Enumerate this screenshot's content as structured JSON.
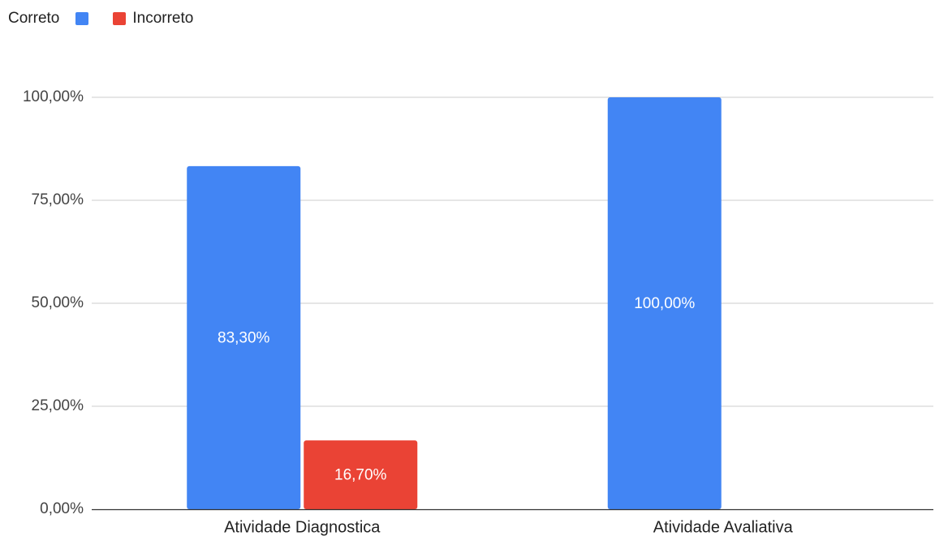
{
  "chart_data": {
    "type": "bar",
    "categories": [
      "Atividade Diagnostica",
      "Atividade Avaliativa"
    ],
    "series": [
      {
        "name": "Correto",
        "color": "#4285f4",
        "values": [
          83.3,
          100.0
        ],
        "labels": [
          "83,30%",
          "100,00%"
        ]
      },
      {
        "name": "Incorreto",
        "color": "#ea4335",
        "values": [
          16.7,
          null
        ],
        "labels": [
          "16,70%",
          null
        ]
      }
    ],
    "ylim": [
      0,
      100
    ],
    "yticks": [
      0,
      25,
      50,
      75,
      100
    ],
    "ytick_labels": [
      "0,00%",
      "25,00%",
      "50,00%",
      "75,00%",
      "100,00%"
    ],
    "legend_position": "top-left",
    "grid": true,
    "title": "",
    "xlabel": "",
    "ylabel": ""
  }
}
